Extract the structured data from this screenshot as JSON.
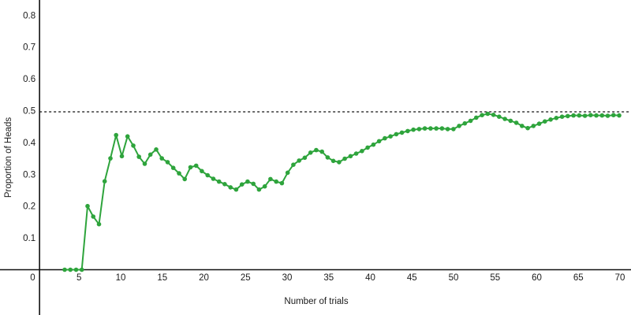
{
  "chart_data": {
    "type": "line",
    "title": "",
    "xlabel": "Number of trials",
    "ylabel": "Proportion of Heads",
    "x_tick_labels": [
      "0",
      "5",
      "10",
      "15",
      "20",
      "25",
      "30",
      "35",
      "40",
      "45",
      "50",
      "55",
      "60",
      "65",
      "70"
    ],
    "x_tick_values": [
      0,
      5,
      10,
      15,
      20,
      25,
      30,
      35,
      40,
      45,
      50,
      55,
      60,
      65,
      70
    ],
    "y_tick_labels": [
      "0.1",
      "0.2",
      "0.3",
      "0.4",
      "0.5",
      "0.6",
      "0.7",
      "0.8"
    ],
    "y_tick_values": [
      0.1,
      0.2,
      0.3,
      0.4,
      0.5,
      0.6,
      0.7,
      0.8
    ],
    "x_range": [
      0,
      71
    ],
    "y_range": [
      0,
      0.85
    ],
    "grid": false,
    "legend": false,
    "reference_line": {
      "value": 0.5,
      "style": "dashed",
      "color": "#111111"
    },
    "series": [
      {
        "name": "proportion-of-heads",
        "color": "#2ea43c",
        "marker": "circle",
        "x_start": 3.27,
        "x_step": 0.687,
        "values": [
          0,
          0,
          0,
          0,
          0.2,
          0.167,
          0.143,
          0.278,
          0.35,
          0.423,
          0.357,
          0.419,
          0.39,
          0.355,
          0.333,
          0.362,
          0.378,
          0.35,
          0.338,
          0.32,
          0.303,
          0.285,
          0.322,
          0.327,
          0.31,
          0.297,
          0.286,
          0.277,
          0.269,
          0.259,
          0.252,
          0.268,
          0.277,
          0.27,
          0.252,
          0.262,
          0.285,
          0.277,
          0.272,
          0.305,
          0.33,
          0.343,
          0.352,
          0.368,
          0.376,
          0.371,
          0.353,
          0.342,
          0.338,
          0.349,
          0.357,
          0.365,
          0.373,
          0.384,
          0.393,
          0.404,
          0.413,
          0.419,
          0.426,
          0.431,
          0.436,
          0.44,
          0.442,
          0.444,
          0.444,
          0.444,
          0.444,
          0.442,
          0.442,
          0.452,
          0.46,
          0.468,
          0.478,
          0.486,
          0.49,
          0.487,
          0.481,
          0.474,
          0.468,
          0.462,
          0.452,
          0.445,
          0.452,
          0.459,
          0.466,
          0.472,
          0.477,
          0.481,
          0.483,
          0.485,
          0.485,
          0.484,
          0.486,
          0.485,
          0.485,
          0.484,
          0.486,
          0.485
        ]
      }
    ]
  }
}
